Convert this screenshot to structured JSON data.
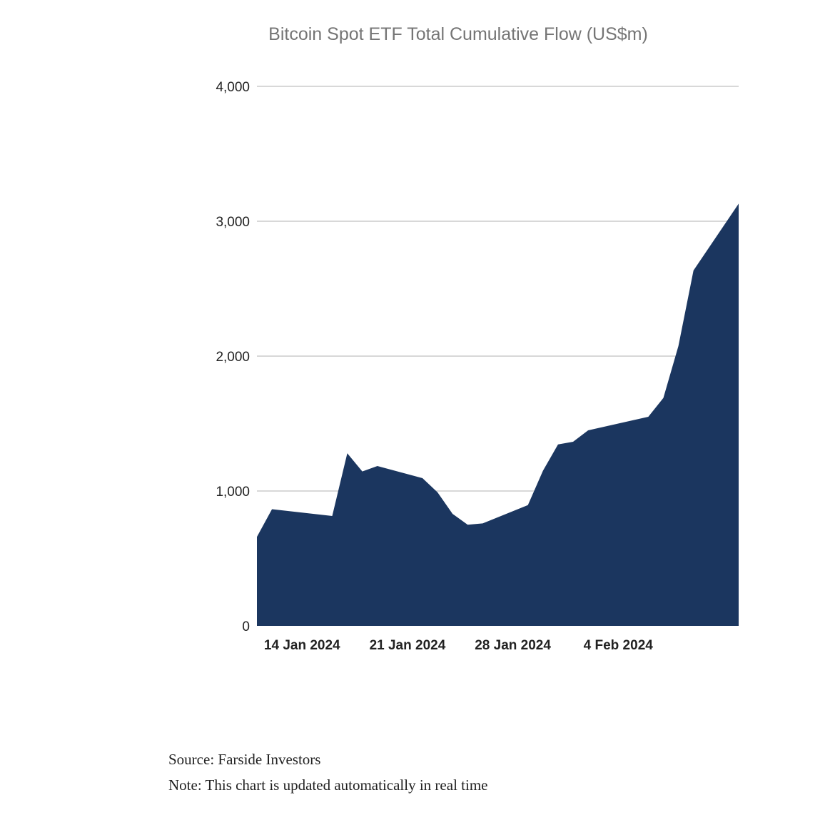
{
  "chart_data": {
    "type": "area",
    "title": "Bitcoin Spot ETF Total Cumulative Flow (US$m)",
    "xlabel": "",
    "ylabel": "",
    "ylim": [
      0,
      4000
    ],
    "y_ticks": [
      0,
      1000,
      2000,
      3000,
      4000
    ],
    "y_tick_labels": [
      "0",
      "1,000",
      "2,000",
      "3,000",
      "4,000"
    ],
    "xlim": [
      "2024-01-11",
      "2024-02-12"
    ],
    "x_ticks": [
      "2024-01-14",
      "2024-01-21",
      "2024-01-28",
      "2024-02-04"
    ],
    "x_tick_labels": [
      "14 Jan 2024",
      "21 Jan 2024",
      "28 Jan 2024",
      "4 Feb 2024"
    ],
    "grid": true,
    "legend": "none",
    "color": "#1b365f",
    "x": [
      "2024-01-11",
      "2024-01-12",
      "2024-01-16",
      "2024-01-17",
      "2024-01-18",
      "2024-01-19",
      "2024-01-22",
      "2024-01-23",
      "2024-01-24",
      "2024-01-25",
      "2024-01-26",
      "2024-01-29",
      "2024-01-30",
      "2024-01-31",
      "2024-02-01",
      "2024-02-02",
      "2024-02-05",
      "2024-02-06",
      "2024-02-07",
      "2024-02-08",
      "2024-02-09",
      "2024-02-12"
    ],
    "values": [
      660,
      865,
      815,
      1280,
      1145,
      1185,
      1095,
      990,
      830,
      750,
      760,
      895,
      1150,
      1345,
      1365,
      1450,
      1525,
      1550,
      1690,
      2075,
      2635,
      3130
    ]
  },
  "footer": {
    "source": "Source: Farside Investors",
    "note": "Note: This chart is updated automatically in real time"
  }
}
